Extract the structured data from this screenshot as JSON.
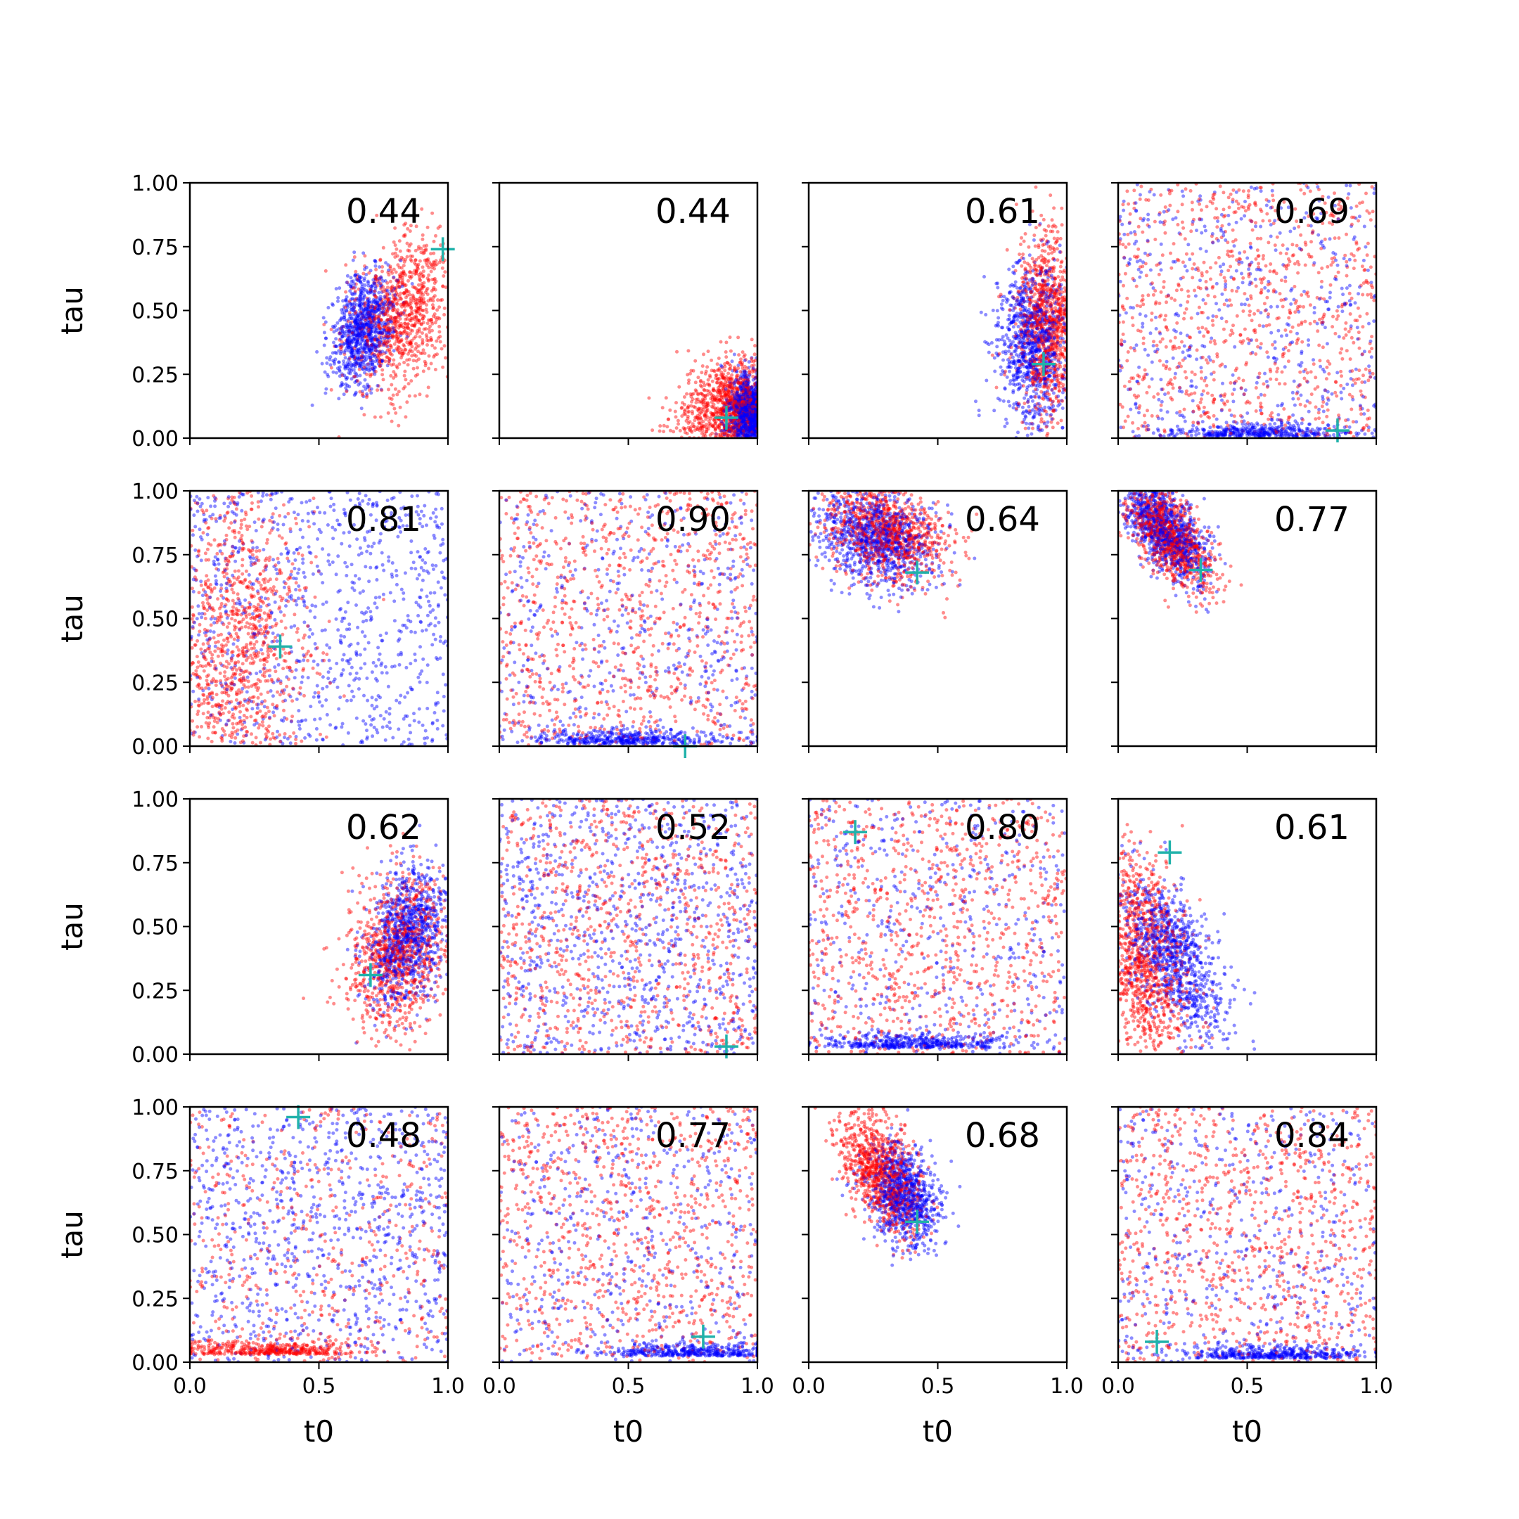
{
  "chart_data": {
    "type": "scatter",
    "layout": "4x4 grid of scatter panels",
    "xlabel": "t0",
    "ylabel": "tau",
    "xlim": [
      0,
      1
    ],
    "ylim": [
      0,
      1
    ],
    "xticks": [
      "0.0",
      "0.5",
      "1.0"
    ],
    "yticks": [
      "0.00",
      "0.25",
      "0.50",
      "0.75",
      "1.00"
    ],
    "grid": false,
    "colors": {
      "series_a": "#0000ff",
      "series_b": "#ff0000",
      "marker": "#20b2aa"
    },
    "panels": [
      {
        "score": "0.44",
        "true": [
          0.98,
          0.74
        ],
        "blue": {
          "dist": "gauss",
          "mx": 0.67,
          "my": 0.43,
          "sx": 0.06,
          "sy": 0.11,
          "rho": 0.3
        },
        "red": {
          "dist": "gauss",
          "mx": 0.82,
          "my": 0.48,
          "sx": 0.1,
          "sy": 0.16,
          "rho": 0.3
        }
      },
      {
        "score": "0.44",
        "true": [
          0.88,
          0.08
        ],
        "blue": {
          "dist": "gauss",
          "mx": 0.97,
          "my": 0.1,
          "sx": 0.04,
          "sy": 0.07,
          "rho": 0.0
        },
        "red": {
          "dist": "gauss",
          "mx": 0.9,
          "my": 0.12,
          "sx": 0.1,
          "sy": 0.1,
          "rho": 0.3
        }
      },
      {
        "score": "0.61",
        "true": [
          0.91,
          0.29
        ],
        "blue": {
          "dist": "gauss",
          "mx": 0.87,
          "my": 0.36,
          "sx": 0.07,
          "sy": 0.16,
          "rho": 0.0
        },
        "red": {
          "dist": "gauss",
          "mx": 0.93,
          "my": 0.45,
          "sx": 0.06,
          "sy": 0.18,
          "rho": 0.0
        }
      },
      {
        "score": "0.69",
        "true": [
          0.85,
          0.03
        ],
        "blue": {
          "dist": "floor",
          "mx": 0.55,
          "my": 0.02
        },
        "red": {
          "dist": "uniform"
        }
      },
      {
        "score": "0.81",
        "true": [
          0.35,
          0.39
        ],
        "blue": {
          "dist": "uniform"
        },
        "red": {
          "dist": "gauss",
          "mx": 0.18,
          "my": 0.4,
          "sx": 0.14,
          "sy": 0.28,
          "rho": 0.0
        }
      },
      {
        "score": "0.90",
        "true": [
          0.72,
          0.0
        ],
        "blue": {
          "dist": "floor",
          "mx": 0.5,
          "my": 0.03
        },
        "red": {
          "dist": "uniform"
        }
      },
      {
        "score": "0.64",
        "true": [
          0.42,
          0.68
        ],
        "blue": {
          "dist": "gauss",
          "mx": 0.25,
          "my": 0.82,
          "sx": 0.12,
          "sy": 0.1,
          "rho": -0.3
        },
        "red": {
          "dist": "gauss",
          "mx": 0.3,
          "my": 0.84,
          "sx": 0.12,
          "sy": 0.1,
          "rho": -0.3
        }
      },
      {
        "score": "0.77",
        "true": [
          0.32,
          0.69
        ],
        "blue": {
          "dist": "gauss",
          "mx": 0.18,
          "my": 0.85,
          "sx": 0.08,
          "sy": 0.1,
          "rho": -0.6
        },
        "red": {
          "dist": "gauss",
          "mx": 0.2,
          "my": 0.82,
          "sx": 0.08,
          "sy": 0.1,
          "rho": -0.6
        }
      },
      {
        "score": "0.62",
        "true": [
          0.7,
          0.31
        ],
        "blue": {
          "dist": "gauss",
          "mx": 0.85,
          "my": 0.47,
          "sx": 0.08,
          "sy": 0.14,
          "rho": 0.3
        },
        "red": {
          "dist": "gauss",
          "mx": 0.8,
          "my": 0.4,
          "sx": 0.1,
          "sy": 0.15,
          "rho": 0.2
        }
      },
      {
        "score": "0.52",
        "true": [
          0.88,
          0.03
        ],
        "blue": {
          "dist": "uniform"
        },
        "red": {
          "dist": "uniform"
        }
      },
      {
        "score": "0.80",
        "true": [
          0.18,
          0.87
        ],
        "blue": {
          "dist": "floor",
          "mx": 0.4,
          "my": 0.08
        },
        "red": {
          "dist": "uniform"
        }
      },
      {
        "score": "0.61",
        "true": [
          0.2,
          0.79
        ],
        "blue": {
          "dist": "gauss",
          "mx": 0.22,
          "my": 0.38,
          "sx": 0.1,
          "sy": 0.16,
          "rho": -0.6
        },
        "red": {
          "dist": "gauss",
          "mx": 0.1,
          "my": 0.38,
          "sx": 0.09,
          "sy": 0.2,
          "rho": -0.3
        }
      },
      {
        "score": "0.48",
        "true": [
          0.42,
          0.96
        ],
        "blue": {
          "dist": "uniform"
        },
        "red": {
          "dist": "floor",
          "mx": 0.3,
          "my": 0.1
        }
      },
      {
        "score": "0.77",
        "true": [
          0.79,
          0.1
        ],
        "blue": {
          "dist": "floor",
          "mx": 0.75,
          "my": 0.08
        },
        "red": {
          "dist": "uniform"
        }
      },
      {
        "score": "0.68",
        "true": [
          0.42,
          0.55
        ],
        "blue": {
          "dist": "gauss",
          "mx": 0.37,
          "my": 0.65,
          "sx": 0.07,
          "sy": 0.1,
          "rho": -0.3
        },
        "red": {
          "dist": "gauss",
          "mx": 0.28,
          "my": 0.74,
          "sx": 0.08,
          "sy": 0.12,
          "rho": -0.5
        }
      },
      {
        "score": "0.84",
        "true": [
          0.15,
          0.08
        ],
        "blue": {
          "dist": "floor",
          "mx": 0.6,
          "my": 0.05
        },
        "red": {
          "dist": "uniform"
        }
      }
    ]
  }
}
